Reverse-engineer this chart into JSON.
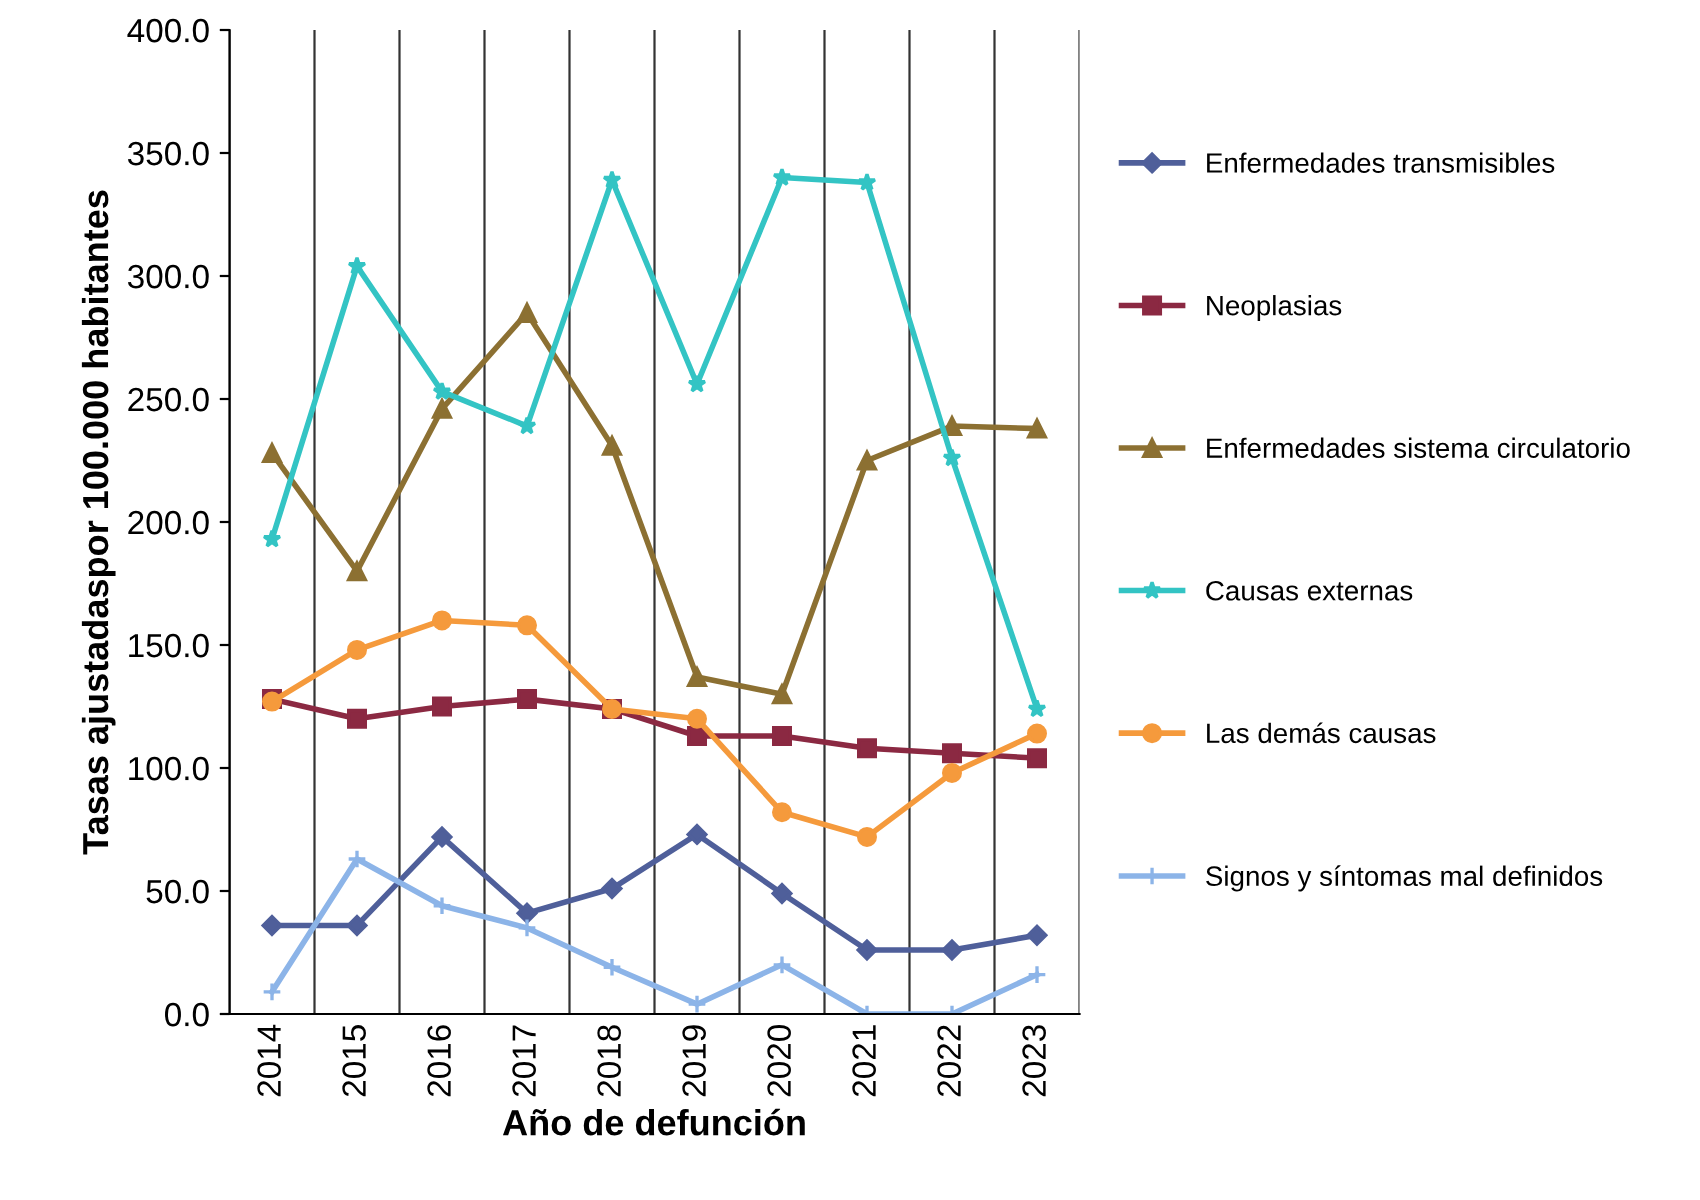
{
  "chart_data": {
    "type": "line",
    "xlabel": "Año de defunción",
    "ylabel": "Tasas ajustadaspor 100.000 habitantes",
    "categories": [
      "2014",
      "2015",
      "2016",
      "2017",
      "2018",
      "2019",
      "2020",
      "2021",
      "2022",
      "2023"
    ],
    "series": [
      {
        "name": "Enfermedades transmisibles",
        "color": "#4f5f9a",
        "marker": "diamond",
        "values": [
          36,
          36,
          72,
          41,
          51,
          73,
          49,
          26,
          26,
          32
        ]
      },
      {
        "name": "Neoplasias",
        "color": "#8b2942",
        "marker": "square",
        "values": [
          128,
          120,
          125,
          128,
          124,
          113,
          113,
          108,
          106,
          104
        ]
      },
      {
        "name": "Enfermedades sistema circulatorio",
        "color": "#8c7032",
        "marker": "triangle",
        "values": [
          228,
          180,
          246,
          285,
          231,
          137,
          130,
          225,
          239,
          238
        ]
      },
      {
        "name": "Causas externas",
        "color": "#33c4c4",
        "marker": "star",
        "values": [
          193,
          304,
          253,
          239,
          339,
          256,
          340,
          338,
          226,
          124
        ]
      },
      {
        "name": "Las demás causas",
        "color": "#f59a3c",
        "marker": "circle",
        "values": [
          127,
          148,
          160,
          158,
          124,
          120,
          82,
          72,
          98,
          114
        ]
      },
      {
        "name": "Signos y síntomas mal definidos",
        "color": "#8cb4e8",
        "marker": "cross",
        "values": [
          9,
          63,
          44,
          35,
          19,
          4,
          20,
          0,
          0,
          16
        ]
      }
    ],
    "ylim": [
      0,
      400
    ],
    "yticks": [
      {
        "value": 0,
        "label": "0.0"
      },
      {
        "value": 50,
        "label": "50.0"
      },
      {
        "value": 100,
        "label": "100.0"
      },
      {
        "value": 150,
        "label": "150.0"
      },
      {
        "value": 200,
        "label": "200.0"
      },
      {
        "value": 250,
        "label": "250.0"
      },
      {
        "value": 300,
        "label": "300.0"
      },
      {
        "value": 350,
        "label": "350.0"
      },
      {
        "value": 400,
        "label": "400.0"
      }
    ],
    "grid": "x",
    "legend": "right"
  }
}
